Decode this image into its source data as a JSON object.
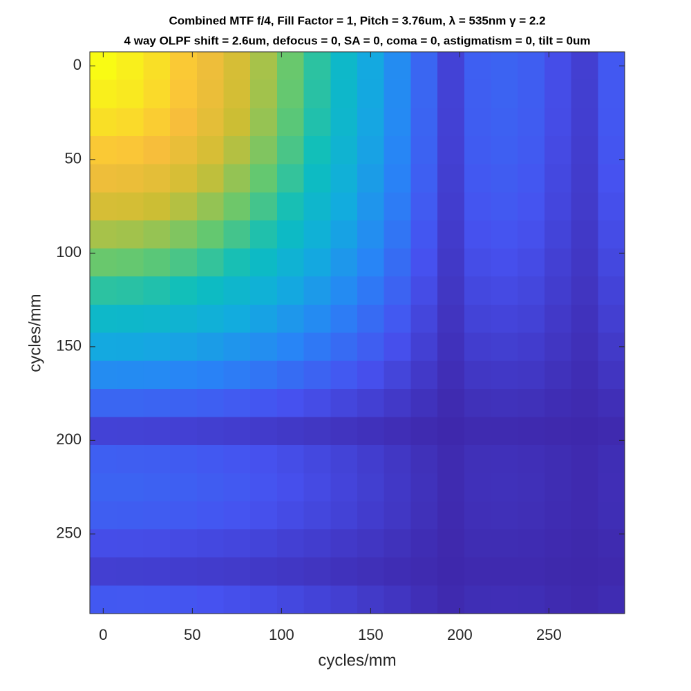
{
  "chart_data": {
    "type": "heatmap",
    "title": [
      "Combined MTF f/4, Fill Factor = 1, Pitch = 3.76um, λ = 535nm γ = 2.2",
      "4 way OLPF shift = 2.6um, defocus = 0, SA = 0, coma = 0, astigmatism = 0, tilt = 0um"
    ],
    "xlabel": "cycles/mm",
    "ylabel": "cycles/mm",
    "x": [
      0,
      15,
      30,
      45,
      60,
      75,
      90,
      105,
      120,
      135,
      150,
      165,
      180,
      195,
      210,
      225,
      240,
      255,
      270,
      285
    ],
    "y": [
      0,
      15,
      30,
      45,
      60,
      75,
      90,
      105,
      120,
      135,
      150,
      165,
      180,
      195,
      210,
      225,
      240,
      255,
      270,
      285
    ],
    "z": [
      [
        1.0,
        0.975,
        0.94,
        0.894,
        0.838,
        0.774,
        0.703,
        0.626,
        0.544,
        0.459,
        0.37,
        0.276,
        0.173,
        0.076,
        0.153,
        0.165,
        0.15,
        0.106,
        0.068,
        0.136
      ],
      [
        0.975,
        0.961,
        0.929,
        0.886,
        0.83,
        0.768,
        0.697,
        0.621,
        0.54,
        0.455,
        0.367,
        0.274,
        0.171,
        0.075,
        0.152,
        0.164,
        0.149,
        0.105,
        0.067,
        0.135
      ],
      [
        0.94,
        0.929,
        0.903,
        0.862,
        0.81,
        0.749,
        0.682,
        0.607,
        0.528,
        0.446,
        0.359,
        0.268,
        0.168,
        0.073,
        0.149,
        0.16,
        0.146,
        0.103,
        0.066,
        0.132
      ],
      [
        0.894,
        0.886,
        0.862,
        0.824,
        0.776,
        0.719,
        0.655,
        0.585,
        0.508,
        0.429,
        0.346,
        0.258,
        0.162,
        0.071,
        0.144,
        0.155,
        0.14,
        0.099,
        0.064,
        0.127
      ],
      [
        0.838,
        0.83,
        0.81,
        0.776,
        0.733,
        0.68,
        0.62,
        0.554,
        0.482,
        0.407,
        0.329,
        0.245,
        0.154,
        0.067,
        0.136,
        0.147,
        0.133,
        0.094,
        0.06,
        0.121
      ],
      [
        0.774,
        0.768,
        0.749,
        0.719,
        0.68,
        0.632,
        0.577,
        0.516,
        0.449,
        0.38,
        0.306,
        0.229,
        0.143,
        0.063,
        0.127,
        0.137,
        0.125,
        0.088,
        0.056,
        0.112
      ],
      [
        0.703,
        0.697,
        0.682,
        0.655,
        0.62,
        0.577,
        0.527,
        0.472,
        0.411,
        0.348,
        0.281,
        0.21,
        0.131,
        0.058,
        0.117,
        0.126,
        0.114,
        0.081,
        0.052,
        0.103
      ],
      [
        0.626,
        0.621,
        0.607,
        0.585,
        0.554,
        0.516,
        0.472,
        0.422,
        0.368,
        0.311,
        0.252,
        0.188,
        0.118,
        0.052,
        0.105,
        0.113,
        0.102,
        0.072,
        0.046,
        0.092
      ],
      [
        0.544,
        0.54,
        0.528,
        0.508,
        0.482,
        0.449,
        0.411,
        0.368,
        0.322,
        0.272,
        0.22,
        0.164,
        0.103,
        0.045,
        0.092,
        0.098,
        0.089,
        0.063,
        0.04,
        0.08
      ],
      [
        0.459,
        0.455,
        0.446,
        0.429,
        0.407,
        0.38,
        0.348,
        0.311,
        0.272,
        0.23,
        0.186,
        0.139,
        0.087,
        0.038,
        0.078,
        0.083,
        0.076,
        0.053,
        0.034,
        0.068
      ],
      [
        0.37,
        0.367,
        0.359,
        0.346,
        0.329,
        0.306,
        0.281,
        0.252,
        0.22,
        0.186,
        0.151,
        0.113,
        0.071,
        0.031,
        0.063,
        0.067,
        0.061,
        0.043,
        0.027,
        0.054
      ],
      [
        0.276,
        0.274,
        0.268,
        0.258,
        0.245,
        0.229,
        0.21,
        0.188,
        0.164,
        0.139,
        0.113,
        0.084,
        0.053,
        0.023,
        0.047,
        0.05,
        0.046,
        0.032,
        0.02,
        0.041
      ],
      [
        0.173,
        0.171,
        0.168,
        0.162,
        0.154,
        0.143,
        0.131,
        0.118,
        0.103,
        0.087,
        0.071,
        0.053,
        0.033,
        0.014,
        0.029,
        0.032,
        0.029,
        0.02,
        0.013,
        0.025
      ],
      [
        0.076,
        0.075,
        0.073,
        0.071,
        0.067,
        0.063,
        0.058,
        0.052,
        0.045,
        0.038,
        0.031,
        0.023,
        0.014,
        0.006,
        0.013,
        0.014,
        0.012,
        0.009,
        0.006,
        0.011
      ],
      [
        0.153,
        0.152,
        0.149,
        0.144,
        0.136,
        0.127,
        0.117,
        0.105,
        0.092,
        0.078,
        0.063,
        0.047,
        0.029,
        0.013,
        0.026,
        0.028,
        0.025,
        0.018,
        0.011,
        0.022
      ],
      [
        0.165,
        0.164,
        0.16,
        0.155,
        0.147,
        0.137,
        0.126,
        0.113,
        0.098,
        0.083,
        0.067,
        0.05,
        0.032,
        0.014,
        0.028,
        0.03,
        0.027,
        0.019,
        0.012,
        0.023
      ],
      [
        0.15,
        0.149,
        0.146,
        0.14,
        0.133,
        0.125,
        0.114,
        0.102,
        0.089,
        0.076,
        0.061,
        0.046,
        0.029,
        0.012,
        0.025,
        0.027,
        0.024,
        0.017,
        0.011,
        0.021
      ],
      [
        0.106,
        0.105,
        0.103,
        0.099,
        0.094,
        0.088,
        0.081,
        0.072,
        0.063,
        0.053,
        0.043,
        0.032,
        0.02,
        0.009,
        0.018,
        0.019,
        0.017,
        0.012,
        0.007,
        0.014
      ],
      [
        0.068,
        0.067,
        0.066,
        0.064,
        0.06,
        0.056,
        0.052,
        0.046,
        0.04,
        0.034,
        0.027,
        0.02,
        0.013,
        0.006,
        0.011,
        0.012,
        0.011,
        0.007,
        0.005,
        0.009
      ],
      [
        0.136,
        0.135,
        0.132,
        0.127,
        0.121,
        0.112,
        0.103,
        0.092,
        0.08,
        0.068,
        0.054,
        0.041,
        0.025,
        0.011,
        0.022,
        0.023,
        0.021,
        0.014,
        0.009,
        0.016
      ]
    ],
    "clim": [
      0,
      1
    ],
    "colormap": "parula",
    "xlim": [
      -7.5,
      292.5
    ],
    "ylim": [
      -7.5,
      292.5
    ],
    "y_reversed": true,
    "xticks": [
      0,
      50,
      100,
      150,
      200,
      250
    ],
    "yticks": [
      0,
      50,
      100,
      150,
      200,
      250
    ]
  }
}
